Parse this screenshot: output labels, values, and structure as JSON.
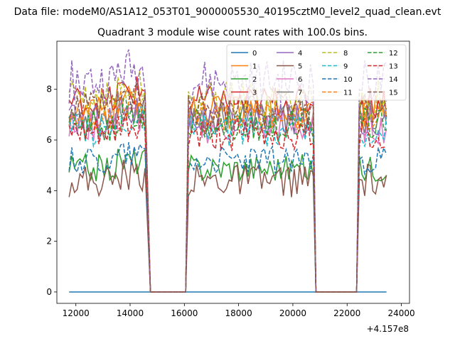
{
  "chart_data": {
    "type": "line",
    "suptitle": "Data file: modeM0/AS1A12_053T01_9000005530_40195cztM0_level2_quad_clean.evt",
    "title": "Quadrant 3 module wise count rates with 100.0s bins.",
    "xlabel": "",
    "ylabel": "",
    "x_offset_label": "+4.157e8",
    "xlim": [
      11300,
      24300
    ],
    "ylim": [
      -0.45,
      9.9
    ],
    "xticks": [
      12000,
      14000,
      16000,
      18000,
      20000,
      22000,
      24000
    ],
    "yticks": [
      0,
      2,
      4,
      6,
      8
    ],
    "grid": false,
    "legend_position": "top-right",
    "legend_columns": 4,
    "colors": [
      "#1f77b4",
      "#ff7f0e",
      "#2ca02c",
      "#d62728",
      "#9467bd",
      "#8c564b",
      "#e377c2",
      "#7f7f7f",
      "#bcbd22",
      "#17becf"
    ],
    "segments": [
      {
        "start": 11750,
        "end": 14600,
        "off_to": 14750
      },
      {
        "start": 16150,
        "end": 20750,
        "off_from": 16050,
        "off_to": 20850
      },
      {
        "start": 22450,
        "end": 23450,
        "off_from": 22350
      }
    ],
    "zero_line": {
      "x": [
        11750,
        23450
      ],
      "y": [
        0,
        0
      ]
    },
    "series": [
      {
        "name": "0",
        "style": "solid",
        "level": 0.0,
        "amp": 0.0
      },
      {
        "name": "1",
        "style": "solid",
        "level": 7.1,
        "amp": 0.3
      },
      {
        "name": "2",
        "style": "solid",
        "level": 4.9,
        "amp": 0.25
      },
      {
        "name": "3",
        "style": "solid",
        "level": 7.5,
        "amp": 0.3
      },
      {
        "name": "4",
        "style": "solid",
        "level": 6.8,
        "amp": 0.3
      },
      {
        "name": "5",
        "style": "solid",
        "level": 4.4,
        "amp": 0.3
      },
      {
        "name": "6",
        "style": "solid",
        "level": 6.5,
        "amp": 0.3
      },
      {
        "name": "7",
        "style": "solid",
        "level": 6.9,
        "amp": 0.3
      },
      {
        "name": "8",
        "style": "dashed",
        "level": 7.6,
        "amp": 0.35
      },
      {
        "name": "9",
        "style": "dashed",
        "level": 6.4,
        "amp": 0.3
      },
      {
        "name": "10",
        "style": "dashed",
        "level": 5.2,
        "amp": 0.25
      },
      {
        "name": "11",
        "style": "dashed",
        "level": 7.0,
        "amp": 0.3
      },
      {
        "name": "12",
        "style": "dashed",
        "level": 6.6,
        "amp": 0.3
      },
      {
        "name": "13",
        "style": "dashed",
        "level": 6.2,
        "amp": 0.3
      },
      {
        "name": "14",
        "style": "dashed",
        "level": 8.3,
        "amp": 0.4
      },
      {
        "name": "15",
        "style": "dashed",
        "level": 7.2,
        "amp": 0.3
      }
    ]
  }
}
